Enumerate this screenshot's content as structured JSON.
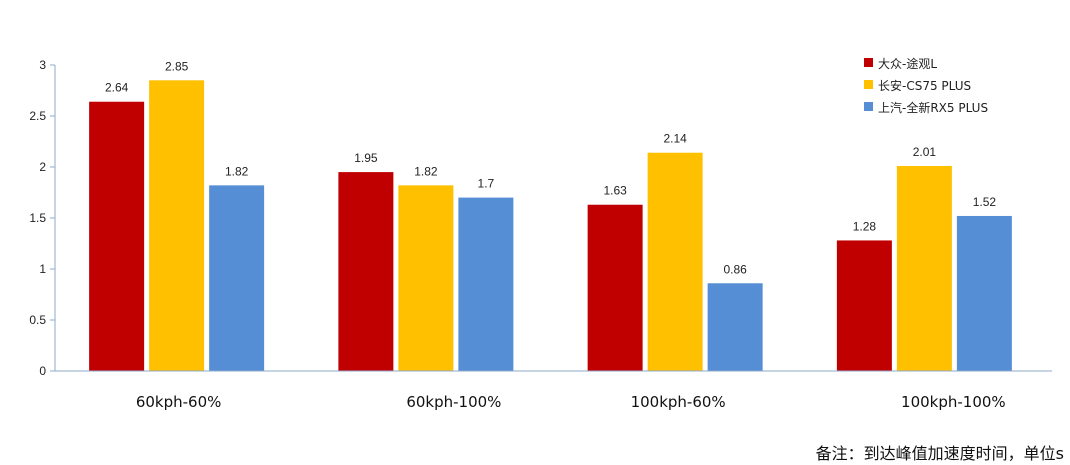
{
  "chart_data": {
    "type": "bar",
    "categories": [
      "60kph-60%",
      "60kph-100%",
      "100kph-60%",
      "100kph-100%"
    ],
    "series": [
      {
        "name": "大众-途观L",
        "color": "#c00000",
        "values": [
          2.64,
          1.95,
          1.63,
          1.28
        ]
      },
      {
        "name": "长安-CS75 PLUS",
        "color": "#ffc000",
        "values": [
          2.85,
          1.82,
          2.14,
          2.01
        ]
      },
      {
        "name": "上汽-全新RX5 PLUS",
        "color": "#558ed5",
        "values": [
          1.82,
          1.7,
          0.86,
          1.52
        ]
      }
    ],
    "data_labels": [
      [
        "2.64",
        "1.95",
        "1.63",
        "1.28"
      ],
      [
        "2.85",
        "1.82",
        "2.14",
        "2.01"
      ],
      [
        "1.82",
        "1.7",
        "0.86",
        "1.52"
      ]
    ],
    "ylim": [
      0,
      3
    ],
    "yticks": [
      0,
      0.5,
      1,
      1.5,
      2,
      2.5,
      3
    ],
    "ytick_labels": [
      "0",
      "0.5",
      "1",
      "1.5",
      "2",
      "2.5",
      "3"
    ],
    "title": "",
    "xlabel": "",
    "ylabel": "",
    "legend_position": "top-right",
    "grid": false
  },
  "footnote": "备注：到达峰值加速度时间，单位s",
  "colors": {
    "axis": "#8faac8",
    "text": "#222222"
  }
}
